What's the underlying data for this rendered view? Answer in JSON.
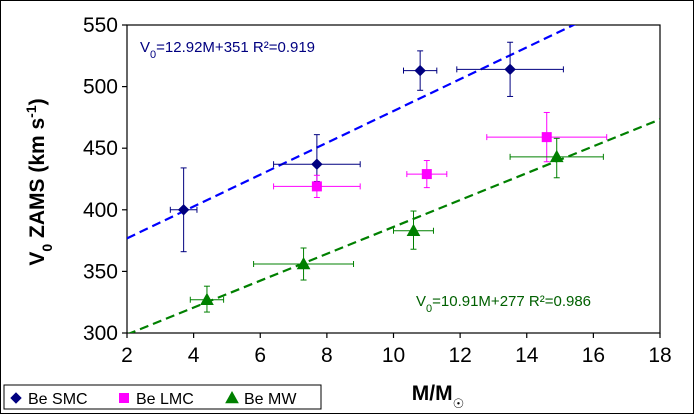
{
  "chart_data": {
    "type": "scatter",
    "xlabel": "M/M☉",
    "ylabel": "V0 ZAMS (km s-1)",
    "xlim": [
      2,
      18
    ],
    "ylim": [
      300,
      550
    ],
    "x_ticks": [
      "2",
      "4",
      "6",
      "8",
      "10",
      "12",
      "14",
      "16",
      "18"
    ],
    "y_ticks": [
      "300",
      "350",
      "400",
      "450",
      "500",
      "550"
    ],
    "grid": false,
    "legend_position": "bottom-left",
    "series": [
      {
        "name": "Be SMC",
        "marker": "diamond",
        "color": "#000080",
        "points": [
          {
            "x": 3.7,
            "y": 400,
            "xerr": 0.4,
            "yerr_low": 34,
            "yerr_high": 34
          },
          {
            "x": 7.7,
            "y": 437,
            "xerr": 1.3,
            "yerr_low": 14,
            "yerr_high": 24
          },
          {
            "x": 10.8,
            "y": 513,
            "xerr": 0.5,
            "yerr_low": 16,
            "yerr_high": 16
          },
          {
            "x": 13.5,
            "y": 514,
            "xerr": 1.6,
            "yerr_low": 22,
            "yerr_high": 22
          }
        ]
      },
      {
        "name": "Be LMC",
        "marker": "square",
        "color": "#ff00ff",
        "points": [
          {
            "x": 7.7,
            "y": 419,
            "xerr": 1.3,
            "yerr_low": 9,
            "yerr_high": 9
          },
          {
            "x": 11.0,
            "y": 429,
            "xerr": 0.6,
            "yerr_low": 11,
            "yerr_high": 11
          },
          {
            "x": 14.6,
            "y": 459,
            "xerr": 1.8,
            "yerr_low": 20,
            "yerr_high": 20
          }
        ]
      },
      {
        "name": "Be MW",
        "marker": "triangle",
        "color": "#008000",
        "points": [
          {
            "x": 4.4,
            "y": 327,
            "xerr": 0.5,
            "yerr_low": 10,
            "yerr_high": 11
          },
          {
            "x": 7.3,
            "y": 356,
            "xerr": 1.5,
            "yerr_low": 13,
            "yerr_high": 13
          },
          {
            "x": 10.6,
            "y": 383,
            "xerr": 0.6,
            "yerr_low": 15,
            "yerr_high": 16
          },
          {
            "x": 14.9,
            "y": 443,
            "xerr": 1.4,
            "yerr_low": 17,
            "yerr_high": 15
          }
        ]
      }
    ],
    "fit_lines": [
      {
        "series": "Be SMC",
        "slope": 12.92,
        "intercept": 351,
        "color": "#0000ff",
        "label_main": "V0=12.92M+351 R²=0.919",
        "label_prefix": "V",
        "label_sub": "0",
        "label_rest": "=12.92M+351 R²=0.919",
        "label_color": "#000080"
      },
      {
        "series": "Be MW",
        "slope": 10.91,
        "intercept": 277,
        "color": "#008000",
        "label_main": "V0=10.91M+277 R²=0.986",
        "label_prefix": "V",
        "label_sub": "0",
        "label_rest": "=10.91M+277 R²=0.986",
        "label_color": "#006000"
      }
    ]
  }
}
